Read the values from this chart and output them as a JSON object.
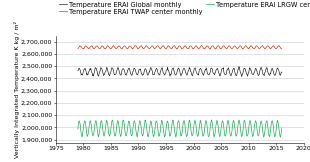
{
  "xlabel": "",
  "ylabel": "Vertically Integrated Temperature K kg / m²",
  "xlim": [
    1975,
    2020
  ],
  "ylim": [
    1875000,
    2750000
  ],
  "yticks": [
    1900000,
    2000000,
    2100000,
    2200000,
    2300000,
    2400000,
    2500000,
    2600000,
    2700000
  ],
  "ytick_labels": [
    "1,900,000",
    "2,000,000",
    "2,100,000",
    "2,200,000",
    "2,300,000",
    "2,400,000",
    "2,500,000",
    "2,600,000",
    "2,700,000"
  ],
  "xticks": [
    1975,
    1980,
    1985,
    1990,
    1995,
    2000,
    2005,
    2010,
    2015,
    2020
  ],
  "series": [
    {
      "label": "Temperature ERAI Global monthly",
      "color": "#111111",
      "mean": 2455000,
      "amplitude": 28000,
      "noise_scale": 0.18,
      "start_year": 1979.0,
      "end_year": 2016.0,
      "phase": 0.0
    },
    {
      "label": "Temperature ERAI TWAP center monthly",
      "color": "#cc2200",
      "mean": 2655000,
      "amplitude": 12000,
      "noise_scale": 0.12,
      "start_year": 1979.0,
      "end_year": 2016.0,
      "phase": 0.2
    },
    {
      "label": "Temperature ERAI LRGW center monthly",
      "color": "#00aa44",
      "mean": 1990000,
      "amplitude": 65000,
      "noise_scale": 0.05,
      "start_year": 1979.0,
      "end_year": 2016.0,
      "phase": 0.0
    }
  ],
  "legend_fontsize": 4.8,
  "tick_fontsize": 4.5,
  "ylabel_fontsize": 4.5,
  "background_color": "#ffffff",
  "grid_color": "#cccccc",
  "linewidth": 0.45
}
